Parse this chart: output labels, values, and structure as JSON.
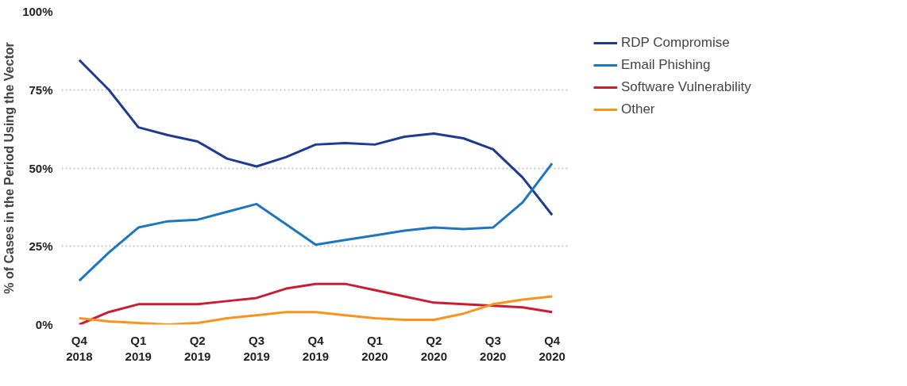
{
  "chart_data": {
    "type": "line",
    "ylabel": "% of Cases in the Period Using the Vector",
    "categories": [
      "Q4\n2018",
      null,
      "Q1\n2019",
      null,
      "Q2\n2019",
      null,
      "Q3\n2019",
      null,
      "Q4\n2019",
      null,
      "Q1\n2020",
      null,
      "Q2\n2020",
      null,
      "Q3\n2020",
      null,
      "Q4\n2020"
    ],
    "series": [
      {
        "name": "RDP Compromise",
        "color": "#1f3a93",
        "values": [
          84.5,
          75,
          63,
          60.5,
          58.5,
          53,
          50.5,
          53.5,
          57.5,
          58,
          57.5,
          60,
          61,
          59.5,
          56,
          47,
          35
        ]
      },
      {
        "name": "Email Phishing",
        "color": "#1e75c0",
        "values": [
          14,
          23,
          31,
          33,
          33.5,
          36,
          38.5,
          32,
          25.5,
          27,
          28.5,
          30,
          31,
          30.5,
          31,
          39,
          51.5
        ]
      },
      {
        "name": "Software Vulnerability",
        "color": "#c81e32",
        "values": [
          0,
          4,
          6.5,
          6.5,
          6.5,
          7.5,
          8.5,
          11.5,
          13,
          13,
          11,
          9,
          7,
          6.5,
          6,
          5.5,
          4
        ]
      },
      {
        "name": "Other",
        "color": "#f7941d",
        "values": [
          2,
          1,
          0.5,
          0,
          0.5,
          2,
          3,
          4,
          4,
          3,
          2,
          1.5,
          1.5,
          3.5,
          6.5,
          8,
          9
        ]
      }
    ],
    "ylim": [
      0,
      100
    ],
    "yticks": [
      {
        "value": 0,
        "label": "0%"
      },
      {
        "value": 25,
        "label": "25%"
      },
      {
        "value": 50,
        "label": "50%"
      },
      {
        "value": 75,
        "label": "75%"
      },
      {
        "value": 100,
        "label": "100%"
      }
    ],
    "grid": "y",
    "legend": "right",
    "marker": "none",
    "line_style": "solid"
  }
}
